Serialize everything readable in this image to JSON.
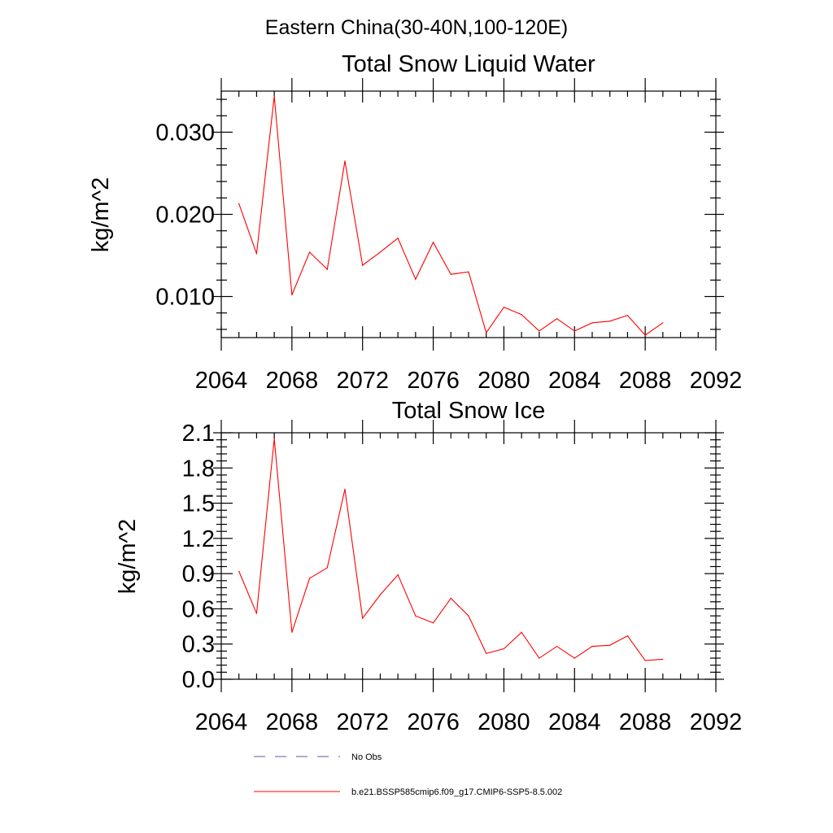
{
  "figure": {
    "suptitle": "Eastern China(30-40N,100-120E)"
  },
  "colors": {
    "model_line": "#ff0000",
    "obs_line": "#5a5aa0",
    "axes": "#000000"
  },
  "chart_data": [
    {
      "type": "line",
      "title": "Total Snow Liquid Water",
      "xlabel": "",
      "ylabel": "kg/m^2",
      "xlim": [
        2064,
        2092
      ],
      "ylim": [
        0.005,
        0.035
      ],
      "xticks": [
        2064,
        2068,
        2072,
        2076,
        2080,
        2084,
        2088,
        2092
      ],
      "xtick_labels": [
        "2064",
        "2068",
        "2072",
        "2076",
        "2080",
        "2084",
        "2088",
        "2092"
      ],
      "yticks": [
        0.01,
        0.02,
        0.03
      ],
      "ytick_labels": [
        "0.010",
        "0.020",
        "0.030"
      ],
      "grid": false,
      "series": [
        {
          "name": "b.e21.BSSP585cmip6.f09_g17.CMIP6-SSP5-8.5.002",
          "color": "#ff0000",
          "x": [
            2065,
            2066,
            2067,
            2068,
            2069,
            2070,
            2071,
            2072,
            2073,
            2074,
            2075,
            2076,
            2077,
            2078,
            2079,
            2080,
            2081,
            2082,
            2083,
            2084,
            2085,
            2086,
            2087,
            2088,
            2089
          ],
          "y": [
            0.0213,
            0.0152,
            0.0344,
            0.0102,
            0.0154,
            0.0133,
            0.0265,
            0.0138,
            0.0154,
            0.0171,
            0.0121,
            0.0166,
            0.0127,
            0.013,
            0.0056,
            0.0087,
            0.0078,
            0.0058,
            0.0073,
            0.0058,
            0.0068,
            0.007,
            0.0077,
            0.0053,
            0.0068
          ]
        }
      ]
    },
    {
      "type": "line",
      "title": "Total Snow Ice",
      "xlabel": "",
      "ylabel": "kg/m^2",
      "xlim": [
        2064,
        2092
      ],
      "ylim": [
        0.0,
        2.1
      ],
      "xticks": [
        2064,
        2068,
        2072,
        2076,
        2080,
        2084,
        2088,
        2092
      ],
      "xtick_labels": [
        "2064",
        "2068",
        "2072",
        "2076",
        "2080",
        "2084",
        "2088",
        "2092"
      ],
      "yticks": [
        0.0,
        0.3,
        0.6,
        0.9,
        1.2,
        1.5,
        1.8,
        2.1
      ],
      "ytick_labels": [
        "0.0",
        "0.3",
        "0.6",
        "0.9",
        "1.2",
        "1.5",
        "1.8",
        "2.1"
      ],
      "grid": false,
      "series": [
        {
          "name": "b.e21.BSSP585cmip6.f09_g17.CMIP6-SSP5-8.5.002",
          "color": "#ff0000",
          "x": [
            2065,
            2066,
            2067,
            2068,
            2069,
            2070,
            2071,
            2072,
            2073,
            2074,
            2075,
            2076,
            2077,
            2078,
            2079,
            2080,
            2081,
            2082,
            2083,
            2084,
            2085,
            2086,
            2087,
            2088,
            2089
          ],
          "y": [
            0.92,
            0.56,
            2.05,
            0.4,
            0.86,
            0.95,
            1.62,
            0.52,
            0.72,
            0.89,
            0.54,
            0.48,
            0.69,
            0.54,
            0.22,
            0.26,
            0.4,
            0.18,
            0.28,
            0.18,
            0.28,
            0.29,
            0.37,
            0.16,
            0.17
          ]
        }
      ]
    }
  ],
  "legend": {
    "placement": "bottom",
    "entries": [
      {
        "label": "No Obs",
        "style": "dashed",
        "color": "#5a5aa0"
      },
      {
        "label": "b.e21.BSSP585cmip6.f09_g17.CMIP6-SSP5-8.5.002",
        "style": "solid",
        "color": "#ff0000"
      }
    ]
  }
}
